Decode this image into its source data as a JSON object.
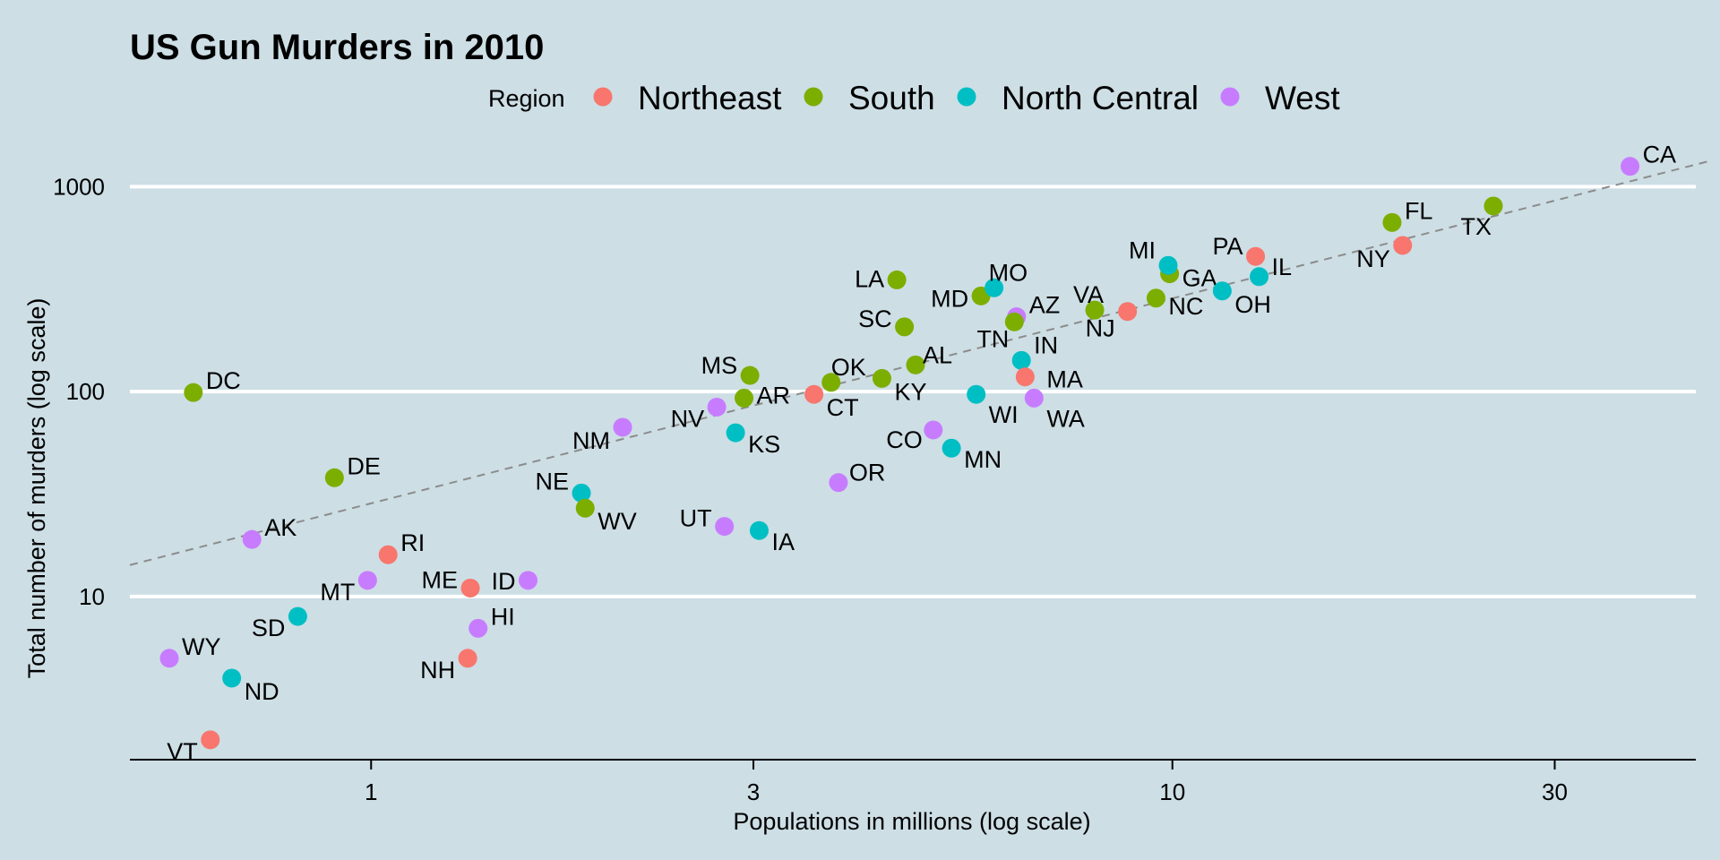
{
  "chart_data": {
    "type": "scatter",
    "title": "US Gun Murders in 2010",
    "xlabel": "Populations in millions (log scale)",
    "ylabel": "Total number of murders (log scale)",
    "x_scale": "log",
    "y_scale": "log",
    "xlim": [
      0.5,
      45
    ],
    "ylim": [
      1.6,
      1800
    ],
    "x_ticks": [
      1,
      3,
      10,
      30
    ],
    "y_ticks": [
      10,
      100,
      1000
    ],
    "grid": "horizontal major",
    "legend": {
      "title": "Region",
      "position": "top",
      "entries": [
        {
          "name": "Northeast",
          "color": "#F8766D"
        },
        {
          "name": "South",
          "color": "#7CAE00"
        },
        {
          "name": "North Central",
          "color": "#00BFC4"
        },
        {
          "name": "West",
          "color": "#C77CFF"
        }
      ]
    },
    "trend_line": {
      "slope": 1,
      "rate_per_million": 28.5,
      "style": "dashed",
      "color": "#8C8C8C"
    },
    "points": [
      {
        "abb": "AL",
        "region": "South",
        "population": 4.78,
        "murders": 135
      },
      {
        "abb": "AK",
        "region": "West",
        "population": 0.71,
        "murders": 19
      },
      {
        "abb": "AZ",
        "region": "West",
        "population": 6.39,
        "murders": 232
      },
      {
        "abb": "AR",
        "region": "South",
        "population": 2.92,
        "murders": 93
      },
      {
        "abb": "CA",
        "region": "West",
        "population": 37.25,
        "murders": 1257
      },
      {
        "abb": "CO",
        "region": "West",
        "population": 5.03,
        "murders": 65
      },
      {
        "abb": "CT",
        "region": "Northeast",
        "population": 3.57,
        "murders": 97
      },
      {
        "abb": "DE",
        "region": "South",
        "population": 0.9,
        "murders": 38
      },
      {
        "abb": "DC",
        "region": "South",
        "population": 0.6,
        "murders": 99
      },
      {
        "abb": "FL",
        "region": "South",
        "population": 18.8,
        "murders": 669
      },
      {
        "abb": "GA",
        "region": "South",
        "population": 9.92,
        "murders": 376
      },
      {
        "abb": "HI",
        "region": "West",
        "population": 1.36,
        "murders": 7
      },
      {
        "abb": "ID",
        "region": "West",
        "population": 1.57,
        "murders": 12
      },
      {
        "abb": "IL",
        "region": "North Central",
        "population": 12.83,
        "murders": 364
      },
      {
        "abb": "IN",
        "region": "North Central",
        "population": 6.48,
        "murders": 142
      },
      {
        "abb": "IA",
        "region": "North Central",
        "population": 3.05,
        "murders": 21
      },
      {
        "abb": "KS",
        "region": "North Central",
        "population": 2.85,
        "murders": 63
      },
      {
        "abb": "KY",
        "region": "South",
        "population": 4.34,
        "murders": 116
      },
      {
        "abb": "LA",
        "region": "South",
        "population": 4.53,
        "murders": 351
      },
      {
        "abb": "ME",
        "region": "Northeast",
        "population": 1.33,
        "murders": 11
      },
      {
        "abb": "MD",
        "region": "South",
        "population": 5.77,
        "murders": 293
      },
      {
        "abb": "MA",
        "region": "Northeast",
        "population": 6.55,
        "murders": 118
      },
      {
        "abb": "MI",
        "region": "North Central",
        "population": 9.88,
        "murders": 413
      },
      {
        "abb": "MN",
        "region": "North Central",
        "population": 5.3,
        "murders": 53
      },
      {
        "abb": "MS",
        "region": "South",
        "population": 2.97,
        "murders": 120
      },
      {
        "abb": "MO",
        "region": "North Central",
        "population": 5.99,
        "murders": 321
      },
      {
        "abb": "MT",
        "region": "West",
        "population": 0.99,
        "murders": 12
      },
      {
        "abb": "NE",
        "region": "North Central",
        "population": 1.83,
        "murders": 32
      },
      {
        "abb": "NV",
        "region": "West",
        "population": 2.7,
        "murders": 84
      },
      {
        "abb": "NH",
        "region": "Northeast",
        "population": 1.32,
        "murders": 5
      },
      {
        "abb": "NJ",
        "region": "Northeast",
        "population": 8.79,
        "murders": 246
      },
      {
        "abb": "NM",
        "region": "West",
        "population": 2.06,
        "murders": 67
      },
      {
        "abb": "NY",
        "region": "Northeast",
        "population": 19.38,
        "murders": 517
      },
      {
        "abb": "NC",
        "region": "South",
        "population": 9.54,
        "murders": 286
      },
      {
        "abb": "ND",
        "region": "North Central",
        "population": 0.67,
        "murders": 4
      },
      {
        "abb": "OH",
        "region": "North Central",
        "population": 11.54,
        "murders": 310
      },
      {
        "abb": "OK",
        "region": "South",
        "population": 3.75,
        "murders": 111
      },
      {
        "abb": "OR",
        "region": "West",
        "population": 3.83,
        "murders": 36
      },
      {
        "abb": "PA",
        "region": "Northeast",
        "population": 12.7,
        "murders": 457
      },
      {
        "abb": "RI",
        "region": "Northeast",
        "population": 1.05,
        "murders": 16
      },
      {
        "abb": "SC",
        "region": "South",
        "population": 4.63,
        "murders": 207
      },
      {
        "abb": "SD",
        "region": "North Central",
        "population": 0.81,
        "murders": 8
      },
      {
        "abb": "TN",
        "region": "South",
        "population": 6.35,
        "murders": 219
      },
      {
        "abb": "TX",
        "region": "South",
        "population": 25.15,
        "murders": 805
      },
      {
        "abb": "UT",
        "region": "West",
        "population": 2.76,
        "murders": 22
      },
      {
        "abb": "VT",
        "region": "Northeast",
        "population": 0.63,
        "murders": 2
      },
      {
        "abb": "VA",
        "region": "South",
        "population": 8.0,
        "murders": 250
      },
      {
        "abb": "WA",
        "region": "West",
        "population": 6.72,
        "murders": 93
      },
      {
        "abb": "WV",
        "region": "South",
        "population": 1.85,
        "murders": 27
      },
      {
        "abb": "WI",
        "region": "North Central",
        "population": 5.69,
        "murders": 97
      },
      {
        "abb": "WY",
        "region": "West",
        "population": 0.56,
        "murders": 5
      }
    ]
  }
}
